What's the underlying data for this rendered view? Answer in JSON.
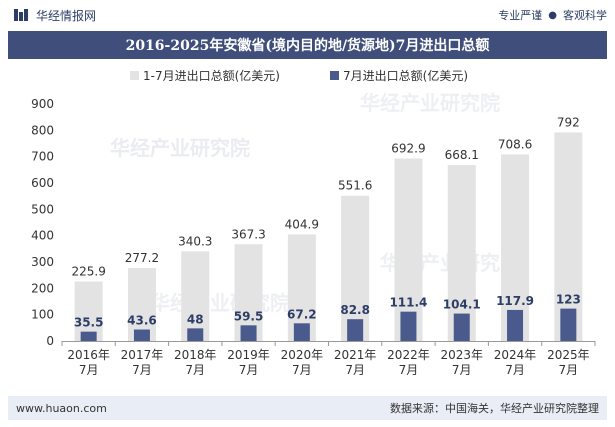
{
  "header": {
    "brand": "华经情报网",
    "tagline_left": "专业严谨",
    "tagline_sep": "●",
    "tagline_right": "客观科学"
  },
  "colors": {
    "title_bg": "#3f4e7a",
    "bar_total": "#e3e3e3",
    "bar_july": "#4a5a8c",
    "footer_bg": "#e9edf5"
  },
  "chart_data": {
    "type": "bar",
    "title": "2016-2025年安徽省(境内目的地/货源地)7月进出口总额",
    "categories": [
      "2016年\n7月",
      "2017年\n7月",
      "2018年\n7月",
      "2019年\n7月",
      "2020年\n7月",
      "2021年\n7月",
      "2022年\n7月",
      "2023年\n7月",
      "2024年\n7月",
      "2025年\n7月"
    ],
    "series": [
      {
        "name": "1-7月进出口总额(亿美元)",
        "values": [
          225.9,
          277.2,
          340.3,
          367.3,
          404.9,
          551.6,
          692.9,
          668.1,
          708.6,
          792
        ]
      },
      {
        "name": "7月进出口总额(亿美元)",
        "values": [
          35.5,
          43.6,
          48,
          59.5,
          67.2,
          82.8,
          111.4,
          104.1,
          117.9,
          123
        ]
      }
    ],
    "ylim": [
      0,
      900
    ],
    "yticks": [
      0,
      100,
      200,
      300,
      400,
      500,
      600,
      700,
      800,
      900
    ],
    "legend_position": "top",
    "grid": false
  },
  "watermark_text": "华经产业研究院",
  "footer": {
    "url": "www.huaon.com",
    "source": "数据来源：中国海关，华经产业研究院整理"
  }
}
